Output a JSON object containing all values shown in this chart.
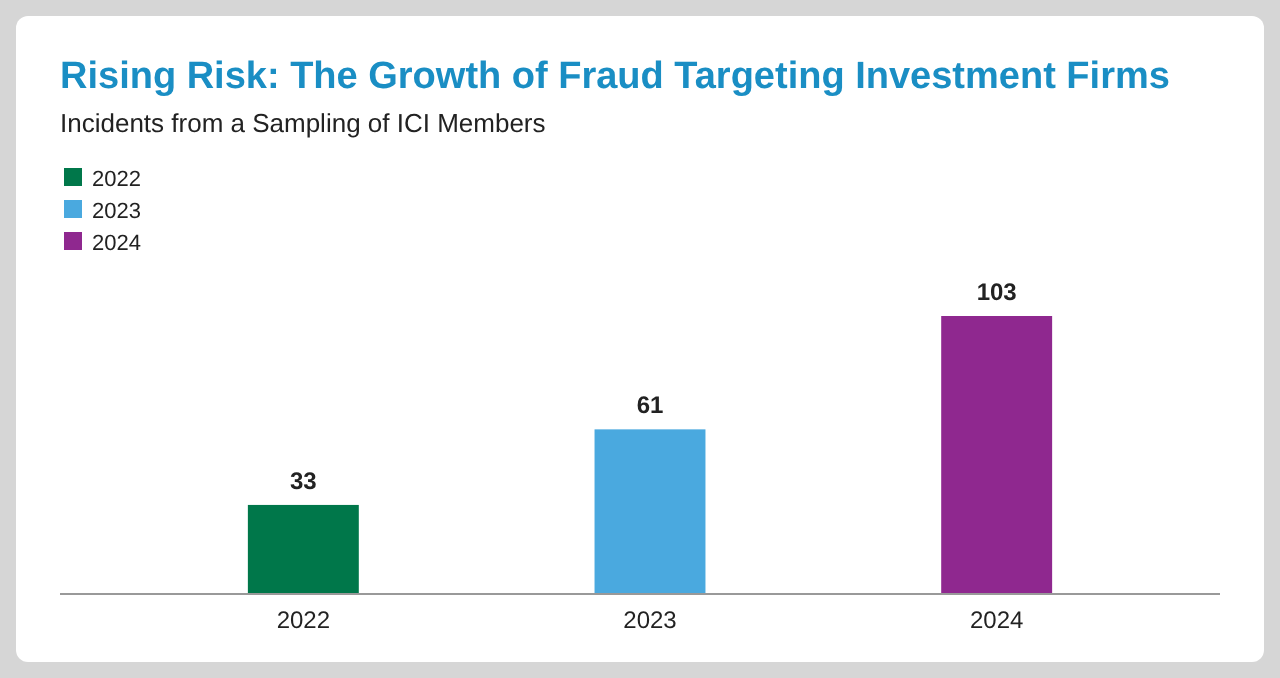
{
  "chart_data": {
    "type": "bar",
    "title": "Rising Risk: The Growth of Fraud Targeting Investment Firms",
    "subtitle": "Incidents from a Sampling of ICI Members",
    "categories": [
      "2022",
      "2023",
      "2024"
    ],
    "series": [
      {
        "name": "2022",
        "color": "#00774a",
        "values": [
          33,
          null,
          null
        ]
      },
      {
        "name": "2023",
        "color": "#4aa9df",
        "values": [
          null,
          61,
          null
        ]
      },
      {
        "name": "2024",
        "color": "#8f288f",
        "values": [
          null,
          null,
          103
        ]
      }
    ],
    "data_labels": true,
    "legend": "top left"
  }
}
